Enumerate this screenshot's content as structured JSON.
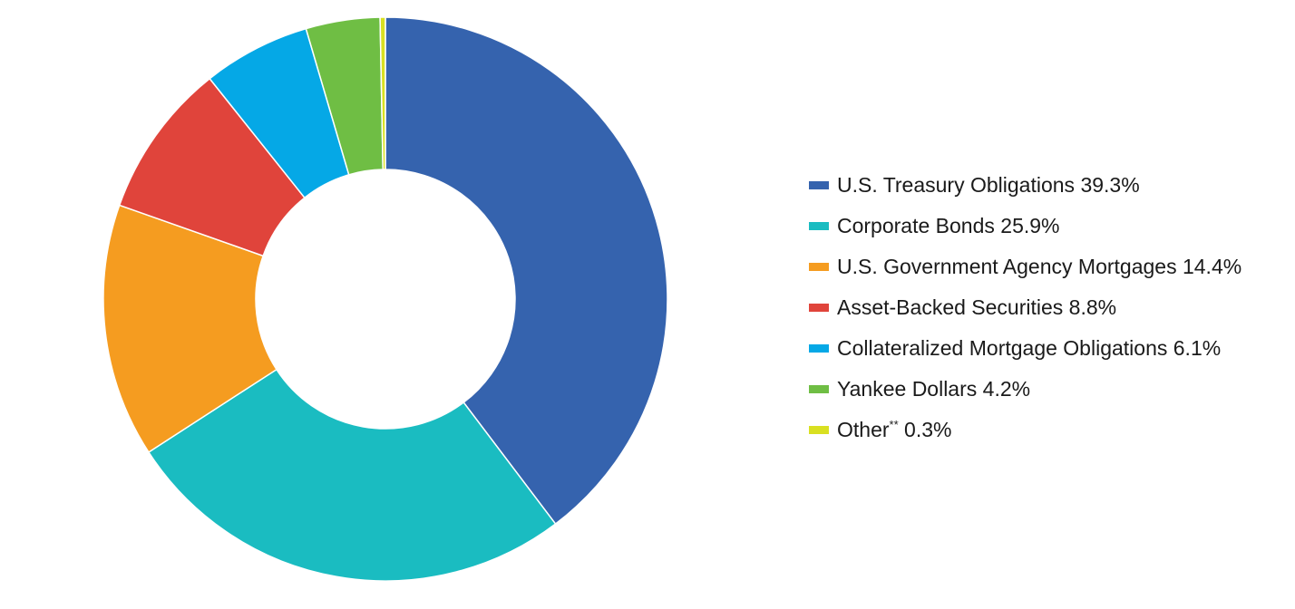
{
  "chart_data": {
    "type": "pie",
    "variant": "donut",
    "title": "",
    "legend_position": "right",
    "series": [
      {
        "name": "U.S. Treasury Obligations",
        "value": 39.3,
        "label": "39.3%",
        "color": "#3563AE"
      },
      {
        "name": "Corporate Bonds",
        "value": 25.9,
        "label": "25.9%",
        "color": "#1ABCC1"
      },
      {
        "name": "U.S. Government Agency Mortgages",
        "value": 14.4,
        "label": "14.4%",
        "color": "#F59C20"
      },
      {
        "name": "Asset-Backed Securities",
        "value": 8.8,
        "label": "8.8%",
        "color": "#E0443B"
      },
      {
        "name": "Collateralized Mortgage Obligations",
        "value": 6.1,
        "label": "6.1%",
        "color": "#05A8E6"
      },
      {
        "name": "Yankee Dollars",
        "value": 4.2,
        "label": "4.2%",
        "color": "#6FBE44"
      },
      {
        "name": "Other",
        "superscript": "**",
        "value": 0.3,
        "label": "0.3%",
        "color": "#D9E021"
      }
    ]
  }
}
